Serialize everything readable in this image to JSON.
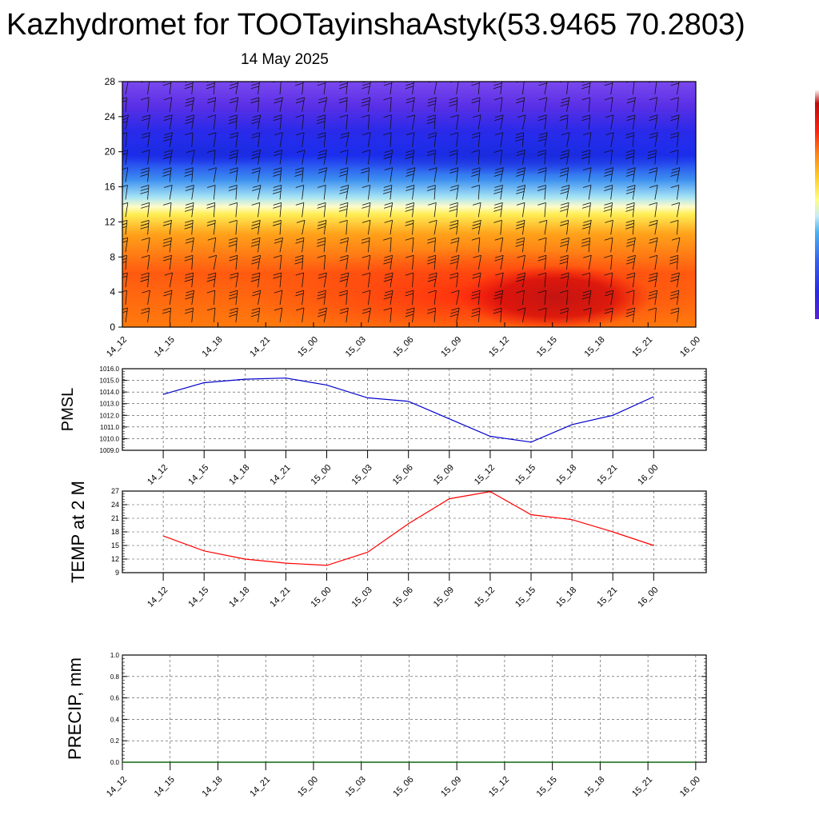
{
  "title": "Kazhydromet for TOOTayinshaAstyk(53.9465 70.2803)",
  "subtitle": "14 May 2025",
  "chart_data": [
    {
      "type": "heatmap",
      "description_of_fill": "filled contour with wind barbs",
      "x_ticks": [
        "14_12",
        "14_15",
        "14_18",
        "14_21",
        "15_00",
        "15_03",
        "15_06",
        "15_09",
        "15_12",
        "15_15",
        "15_18",
        "15_21",
        "16_00"
      ],
      "y_ticks": [
        0,
        4,
        8,
        12,
        16,
        20,
        24,
        28
      ],
      "ylim": [
        0,
        28
      ],
      "colorbar": [
        "#5a1fd8",
        "#3a2be0",
        "#2233ee",
        "#3560f0",
        "#4a9cf2",
        "#9fdcf5",
        "#fff9b0",
        "#ffe23a",
        "#ffb51e",
        "#ff8414",
        "#ff3c10",
        "#ee0a0a",
        "#b80a0a"
      ],
      "grid": false
    },
    {
      "type": "line",
      "ylabel": "PMSL",
      "x": [
        "14_12",
        "14_15",
        "14_18",
        "14_21",
        "15_00",
        "15_03",
        "15_06",
        "15_09",
        "15_12",
        "15_15",
        "15_18",
        "15_21",
        "16_00"
      ],
      "series": [
        {
          "values": [
            1013.8,
            1014.8,
            1015.1,
            1015.2,
            1014.6,
            1013.5,
            1013.2,
            1011.7,
            1010.2,
            1009.7,
            1011.2,
            1012.0,
            1013.6
          ]
        }
      ],
      "y_ticks": [
        "1009.0",
        "1010.0",
        "1011.0",
        "1012.0",
        "1013.0",
        "1014.0",
        "1015.0",
        "1016.0"
      ],
      "ylim": [
        1009,
        1016
      ],
      "color": "#0000cc",
      "grid": true
    },
    {
      "type": "line",
      "ylabel": "TEMP at 2 M",
      "x": [
        "14_12",
        "14_15",
        "14_18",
        "14_21",
        "15_00",
        "15_03",
        "15_06",
        "15_09",
        "15_12",
        "15_15",
        "15_18",
        "15_21",
        "16_00"
      ],
      "series": [
        {
          "values": [
            17.1,
            13.8,
            12.0,
            11.1,
            10.6,
            13.5,
            19.8,
            25.3,
            26.9,
            21.8,
            20.7,
            18.0,
            15.0
          ]
        }
      ],
      "y_ticks": [
        "9",
        "12",
        "15",
        "18",
        "21",
        "24",
        "27"
      ],
      "ylim": [
        9,
        27
      ],
      "color": "#ff0000",
      "grid": true
    },
    {
      "type": "line",
      "ylabel": "PRECIP, mm",
      "x": [
        "14_12",
        "14_15",
        "14_18",
        "14_21",
        "15_00",
        "15_03",
        "15_06",
        "15_09",
        "15_12",
        "15_15",
        "15_18",
        "15_21",
        "16_00"
      ],
      "series": [
        {
          "values": [
            0,
            0,
            0,
            0,
            0,
            0,
            0,
            0,
            0,
            0,
            0,
            0,
            0
          ]
        }
      ],
      "y_ticks": [
        "0.0",
        "0.2",
        "0.4",
        "0.6",
        "0.8",
        "1.0"
      ],
      "ylim": [
        0,
        1
      ],
      "color": "#006400",
      "grid": true
    }
  ]
}
